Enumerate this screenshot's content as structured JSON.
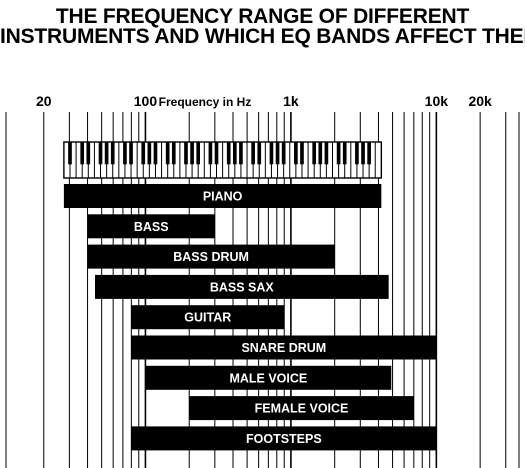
{
  "chart_data": {
    "type": "bar",
    "orientation": "horizontal-range",
    "title_lines": [
      "THE FREQUENCY RANGE OF DIFFERENT",
      "INSTRUMENTS AND WHICH EQ BANDS AFFECT THEM"
    ],
    "xlabel": "Frequency in Hz",
    "xscale": "log",
    "xlim": [
      11,
      37000
    ],
    "tick_labels": [
      {
        "value": 20,
        "label": "20"
      },
      {
        "value": 100,
        "label": "100"
      },
      {
        "value": 1000,
        "label": "1k"
      },
      {
        "value": 10000,
        "label": "10k"
      },
      {
        "value": 20000,
        "label": "20k"
      }
    ],
    "grid": true,
    "keyboard": {
      "label": "piano keyboard",
      "range": [
        27.5,
        4186
      ]
    },
    "bars": [
      {
        "name": "PIANO",
        "low": 27.5,
        "high": 4186
      },
      {
        "name": "BASS",
        "low": 40,
        "high": 300
      },
      {
        "name": "BASS DRUM",
        "low": 40,
        "high": 2000
      },
      {
        "name": "BASS SAX",
        "low": 45,
        "high": 4700
      },
      {
        "name": "GUITAR",
        "low": 80,
        "high": 900
      },
      {
        "name": "SNARE DRUM",
        "low": 80,
        "high": 10000
      },
      {
        "name": "MALE VOICE",
        "low": 100,
        "high": 4900
      },
      {
        "name": "FEMALE VOICE",
        "low": 200,
        "high": 7000
      },
      {
        "name": "FOOTSTEPS",
        "low": 80,
        "high": 10000
      }
    ],
    "colors": {
      "bar": "#000000",
      "bar_text": "#ffffff",
      "grid": "#000000",
      "background": "#ffffff"
    }
  }
}
